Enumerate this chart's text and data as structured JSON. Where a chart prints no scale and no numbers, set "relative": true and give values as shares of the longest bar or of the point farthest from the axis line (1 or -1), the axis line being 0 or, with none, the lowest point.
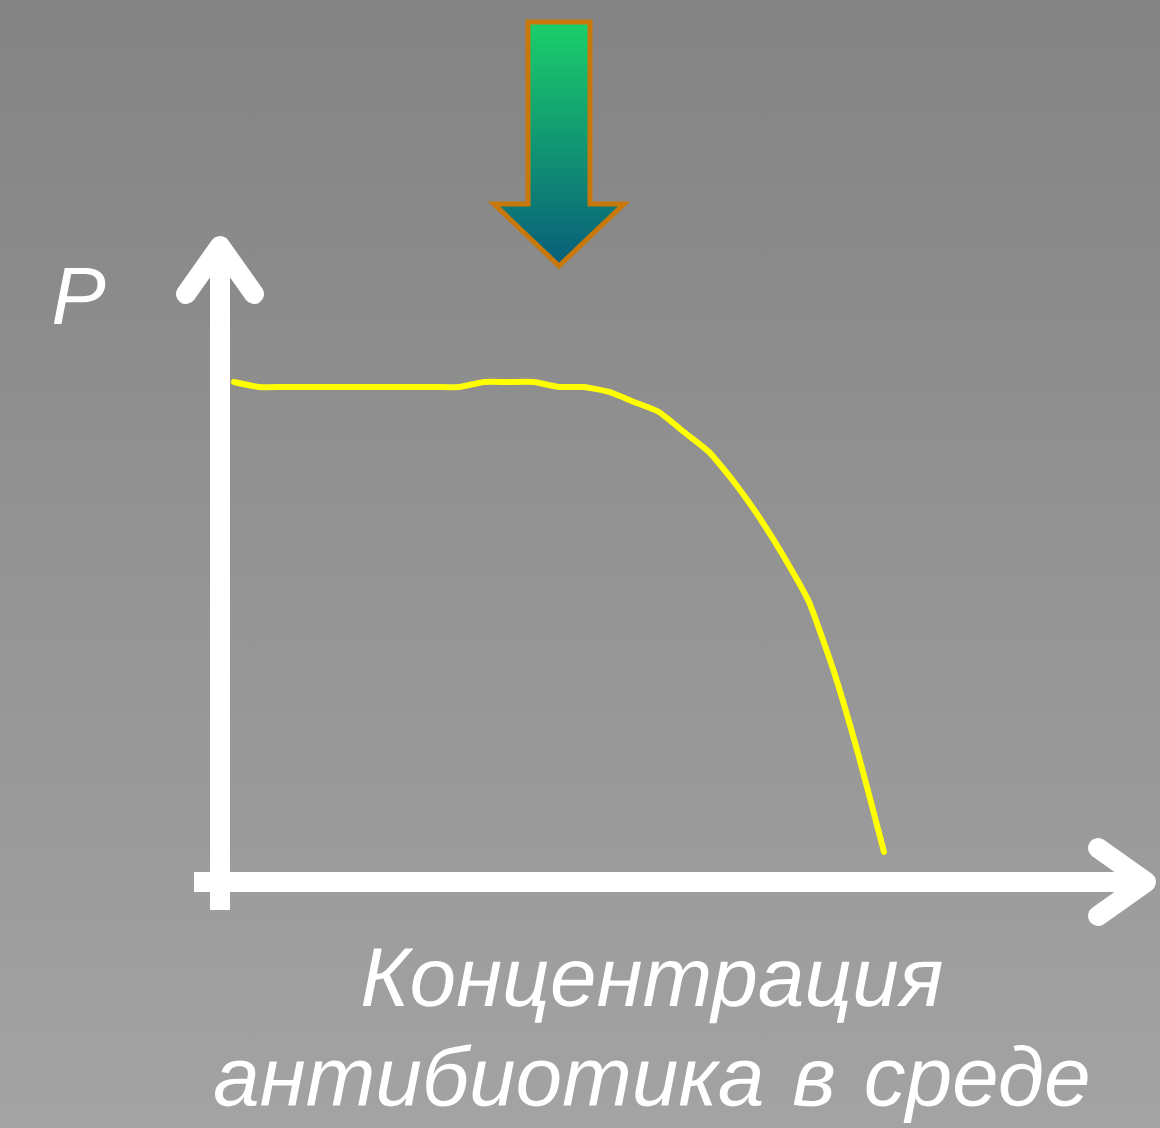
{
  "chart_data": {
    "type": "line",
    "xlabel": "Концентрация антибиотика в среде",
    "ylabel": "P",
    "relative": true,
    "categories": [
      null,
      null,
      null,
      null,
      null,
      null,
      null,
      null,
      null,
      null,
      null,
      null,
      null,
      null,
      null,
      null,
      null,
      null,
      null,
      null,
      null,
      null,
      null,
      null,
      null,
      null,
      null
    ],
    "series": [
      {
        "color": "#ffff00",
        "values": [
          1.0,
          0.99,
          0.99,
          0.99,
          0.99,
          0.99,
          0.99,
          0.99,
          0.99,
          0.99,
          1.0,
          1.0,
          1.0,
          0.99,
          0.99,
          0.98,
          0.96,
          0.94,
          0.9,
          0.86,
          0.8,
          0.73,
          0.65,
          0.56,
          0.42,
          0.25,
          0.06
        ]
      }
    ],
    "marker": "none",
    "line_style": "solid"
  }
}
